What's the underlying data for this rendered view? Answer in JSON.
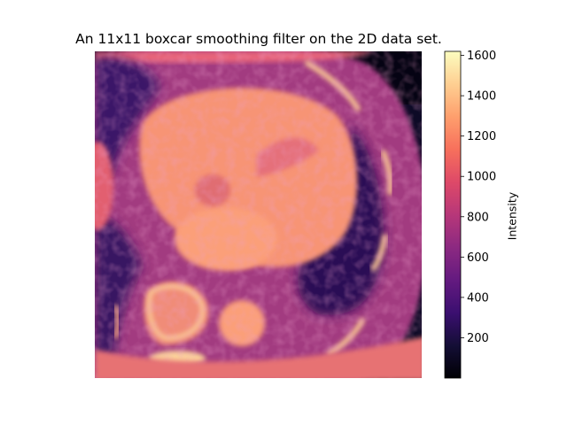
{
  "chart_data": {
    "type": "heatmap",
    "title": "An 11x11 boxcar smoothing filter on the 2D data set.",
    "colormap": "magma",
    "colorbar": {
      "label": "Intensity",
      "ticks": [
        200,
        400,
        600,
        800,
        1000,
        1200,
        1400,
        1600
      ],
      "tick_labels": [
        "200",
        "400",
        "600",
        "800",
        "1000",
        "1200",
        "1400",
        "1600"
      ],
      "range": [
        0,
        1620
      ]
    },
    "axes_visible": false,
    "content": "smoothed cardiac CT cross-section"
  }
}
